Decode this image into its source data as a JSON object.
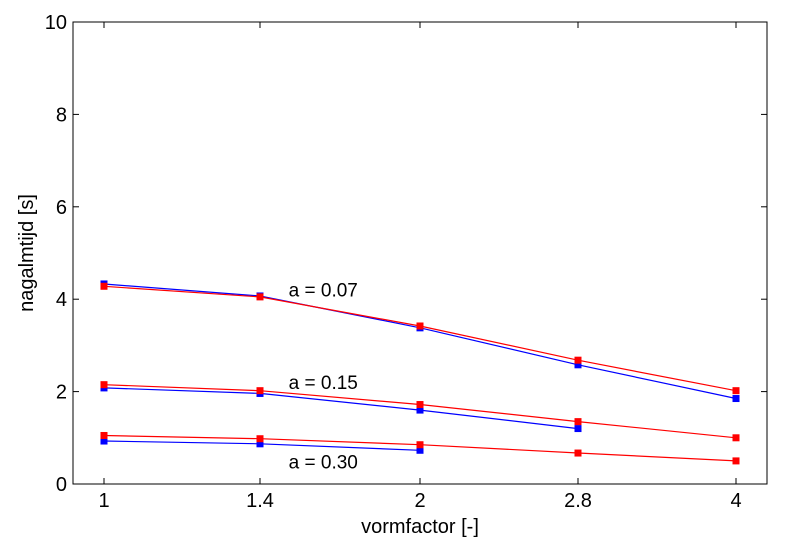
{
  "chart_data": {
    "type": "line",
    "xlabel": "vormfactor [-]",
    "ylabel": "nagalmtijd [s]",
    "x": [
      1,
      1.4,
      2,
      2.8,
      4
    ],
    "x_tick_labels": [
      "1",
      "1.4",
      "2",
      "2.8",
      "4"
    ],
    "ylim": [
      0,
      10
    ],
    "y_ticks": [
      0,
      2,
      4,
      6,
      8,
      10
    ],
    "grid": false,
    "series": [
      {
        "group": "a = 0.07",
        "color": "#0000ff",
        "x": [
          1,
          1.4,
          2,
          2.8,
          4
        ],
        "y": [
          4.33,
          4.07,
          3.38,
          2.58,
          1.85
        ]
      },
      {
        "group": "a = 0.07",
        "color": "#ff0000",
        "x": [
          1,
          1.4,
          2,
          2.8,
          4
        ],
        "y": [
          4.28,
          4.05,
          3.42,
          2.68,
          2.02
        ]
      },
      {
        "group": "a = 0.15",
        "color": "#0000ff",
        "x": [
          1,
          1.4,
          2,
          2.8
        ],
        "y": [
          2.08,
          1.96,
          1.6,
          1.2
        ]
      },
      {
        "group": "a = 0.15",
        "color": "#ff0000",
        "x": [
          1,
          1.4,
          2,
          2.8,
          4
        ],
        "y": [
          2.15,
          2.02,
          1.72,
          1.35,
          1.0
        ]
      },
      {
        "group": "a = 0.30",
        "color": "#0000ff",
        "x": [
          1,
          1.4,
          2
        ],
        "y": [
          0.93,
          0.87,
          0.73
        ]
      },
      {
        "group": "a = 0.30",
        "color": "#ff0000",
        "x": [
          1,
          1.4,
          2,
          2.8,
          4
        ],
        "y": [
          1.05,
          0.98,
          0.85,
          0.67,
          0.5
        ]
      }
    ],
    "annotations": [
      {
        "text": "a = 0.07",
        "x": 1.5,
        "y": 4.1
      },
      {
        "text": "a = 0.15",
        "x": 1.5,
        "y": 2.1
      },
      {
        "text": "a = 0.30",
        "x": 1.5,
        "y": 0.38
      }
    ]
  }
}
